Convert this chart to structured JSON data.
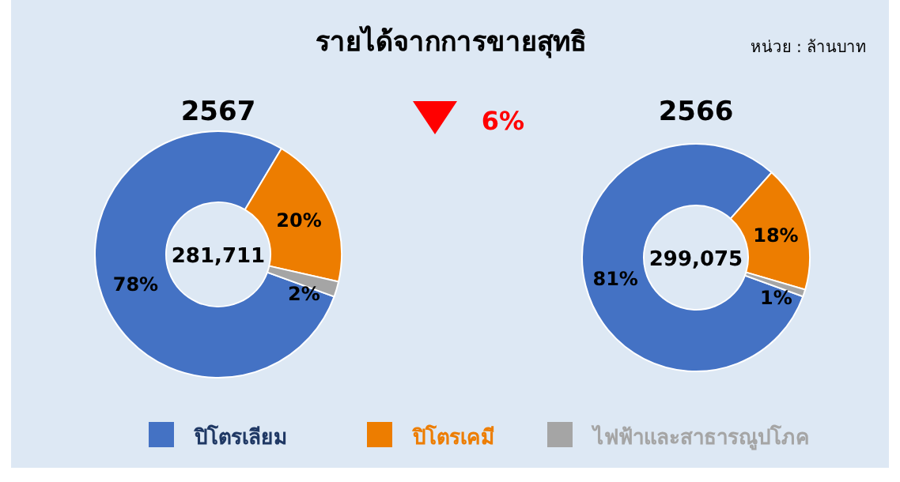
{
  "chart_data": {
    "type": "donut",
    "title": "รายได้จากการขายสุทธิ",
    "annotations": [
      "หน่วย : ล้านบาท",
      "6%",
      "281,711",
      "299,075"
    ],
    "categories": [
      "ปิโตรเลียม",
      "ปิโตรเคมี",
      "ไฟฟ้าและสาธารณูปโภค"
    ],
    "colors": [
      "#4472c4",
      "#ed7d00",
      "#a5a5a5"
    ],
    "legend": "bottom",
    "series": [
      {
        "name": "2567",
        "values": [
          78,
          20,
          2
        ],
        "value_labels": [
          "78%",
          "20%",
          "2%"
        ]
      },
      {
        "name": "2566",
        "values": [
          81,
          18,
          1
        ],
        "value_labels": [
          "81%",
          "18%",
          "1%"
        ]
      }
    ]
  }
}
